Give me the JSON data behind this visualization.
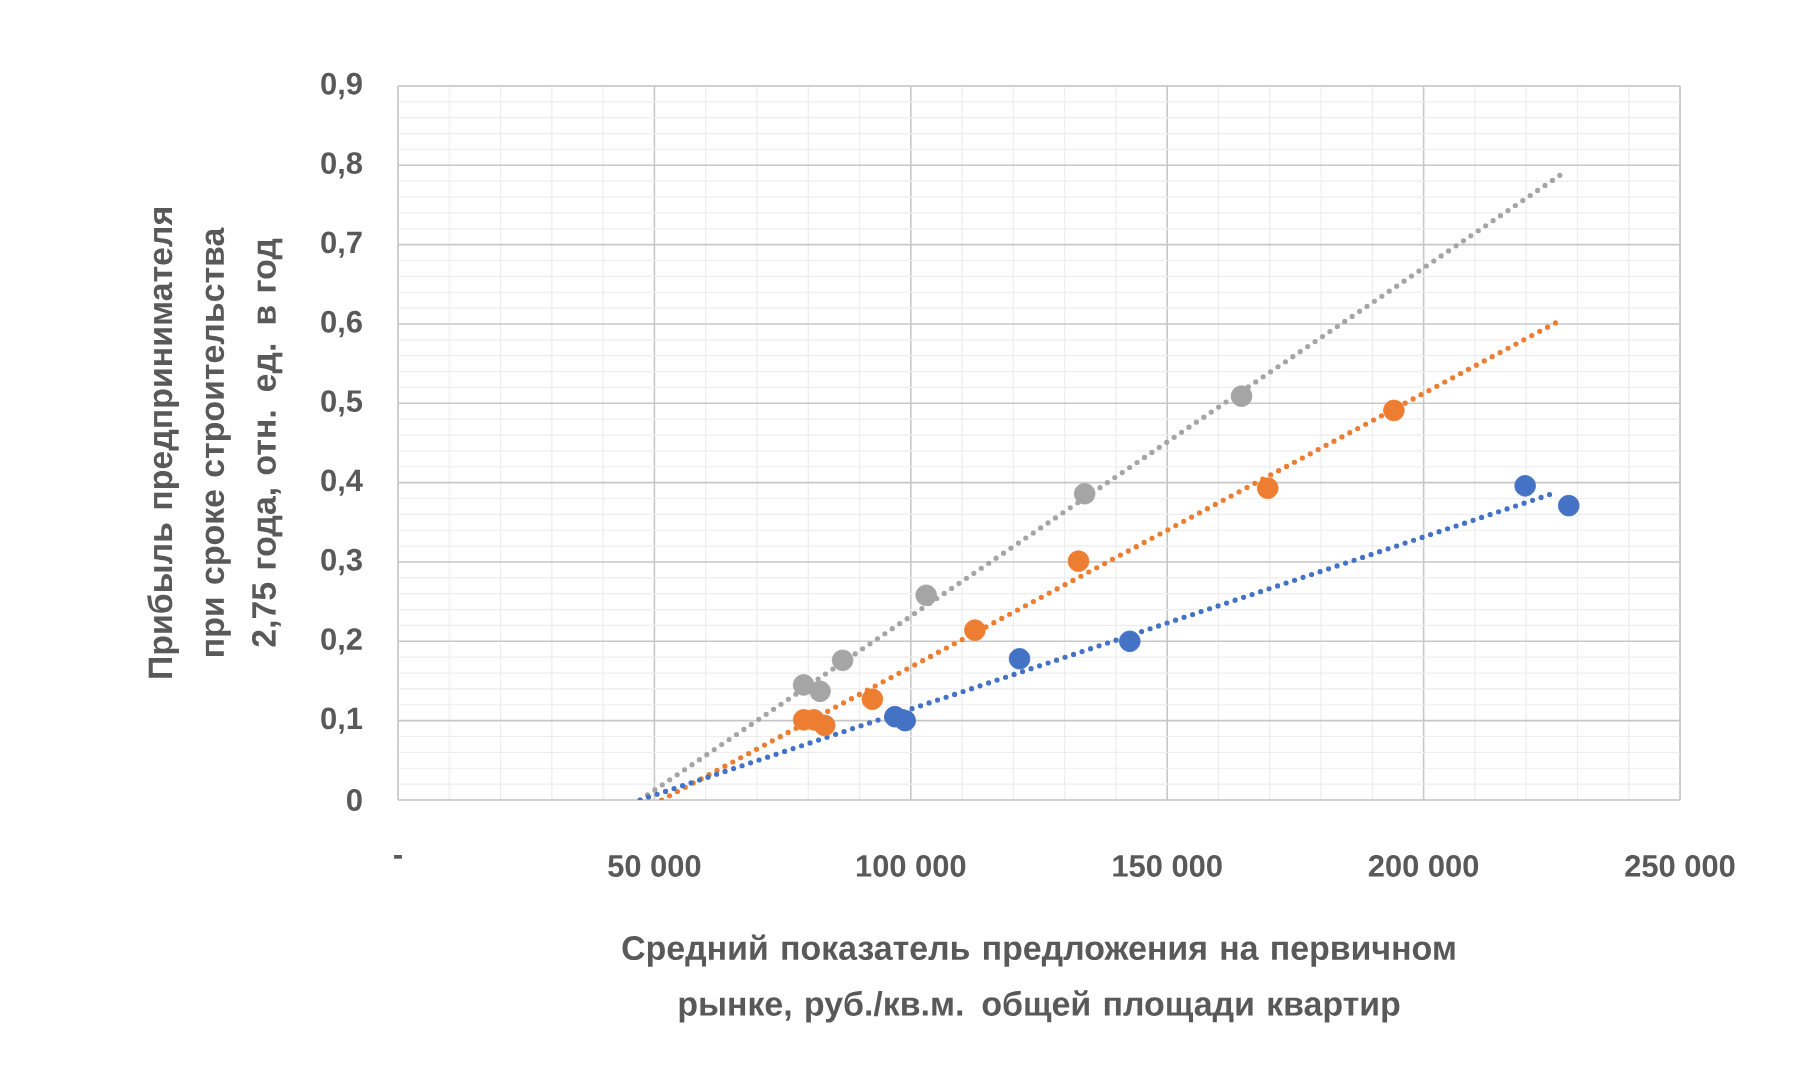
{
  "chart_data": {
    "type": "scatter",
    "xlabel": "Средний показатель предложения на первичном рынке, руб./кв.м. общей площади квартир",
    "ylabel": "Прибыль предпринимателя при сроке строительства 2,75 года, отн. ед. в год",
    "xlim": [
      0,
      250000
    ],
    "ylim": [
      0,
      0.9
    ],
    "xticks": [
      {
        "value": 0,
        "label": "-"
      },
      {
        "value": 50000,
        "label": "50 000"
      },
      {
        "value": 100000,
        "label": "100 000"
      },
      {
        "value": 150000,
        "label": "150 000"
      },
      {
        "value": 200000,
        "label": "200 000"
      },
      {
        "value": 250000,
        "label": "250 000"
      }
    ],
    "yticks": [
      0,
      {
        "value": 0.1,
        "label": "0,1"
      },
      {
        "value": 0.2,
        "label": "0,2"
      },
      {
        "value": 0.3,
        "label": "0,3"
      },
      {
        "value": 0.4,
        "label": "0,4"
      },
      {
        "value": 0.5,
        "label": "0,5"
      },
      {
        "value": 0.6,
        "label": "0,6"
      },
      {
        "value": 0.7,
        "label": "0,7"
      },
      {
        "value": 0.8,
        "label": "0,8"
      },
      {
        "value": 0.9,
        "label": "0,9"
      }
    ],
    "grid": true,
    "marker": "circle",
    "series": [
      {
        "type": "line",
        "line_style": "dotted",
        "marker": "none",
        "color": "#a5a5a5",
        "x": [
          47200,
          227400
        ],
        "values": [
          0,
          0.791
        ]
      },
      {
        "type": "line",
        "line_style": "dotted",
        "marker": "none",
        "color": "#ed7d31",
        "x": [
          51400,
          226200
        ],
        "values": [
          0,
          0.603
        ]
      },
      {
        "type": "line",
        "line_style": "dotted",
        "marker": "none",
        "color": "#4472c4",
        "x": [
          47200,
          224600
        ],
        "values": [
          0,
          0.385
        ]
      },
      {
        "color": "#a5a5a5",
        "x": [
          79100,
          82300,
          86700,
          103000,
          133900,
          164500
        ],
        "values": [
          0.145,
          0.137,
          0.176,
          0.258,
          0.386,
          0.509
        ]
      },
      {
        "color": "#ed7d31",
        "x": [
          79100,
          81100,
          83200,
          92500,
          112500,
          132700,
          169600,
          194200
        ],
        "values": [
          0.101,
          0.101,
          0.094,
          0.127,
          0.214,
          0.301,
          0.393,
          0.491
        ]
      },
      {
        "color": "#4472c4",
        "x": [
          96900,
          98900,
          121200,
          142700,
          219800,
          228300
        ],
        "values": [
          0.105,
          0.1,
          0.178,
          0.2,
          0.396,
          0.371
        ]
      }
    ]
  }
}
